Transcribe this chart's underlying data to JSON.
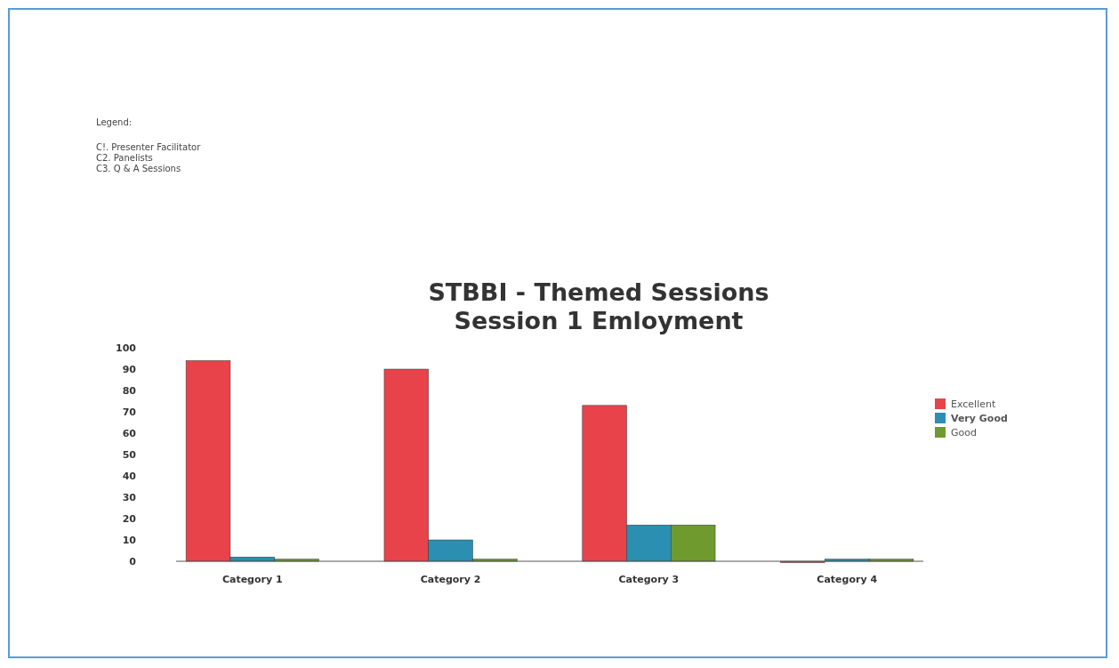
{
  "chart_data": {
    "type": "bar",
    "title": "STBBI - Themed Sessions\nSession 1 Emloyment",
    "annotations": [
      "Legend:",
      "C!. Presenter Facilitator",
      "C2. Panelists",
      "C3. Q & A Sessions"
    ],
    "categories": [
      "Category 1",
      "Category 2",
      "Category 3",
      "Category 4"
    ],
    "series": [
      {
        "name": "Excellent",
        "color": "#e8434a",
        "values": [
          94,
          90,
          73,
          0
        ]
      },
      {
        "name": "Very Good",
        "color": "#2a8fb0",
        "values": [
          2,
          10,
          17,
          1
        ]
      },
      {
        "name": "Good",
        "color": "#6f9a2e",
        "values": [
          1,
          1,
          17,
          1
        ]
      }
    ],
    "ylim": [
      0,
      100
    ],
    "yticks": [
      0,
      10,
      20,
      30,
      40,
      50,
      60,
      70,
      80,
      90,
      100
    ],
    "grid": false,
    "legend": "right"
  }
}
